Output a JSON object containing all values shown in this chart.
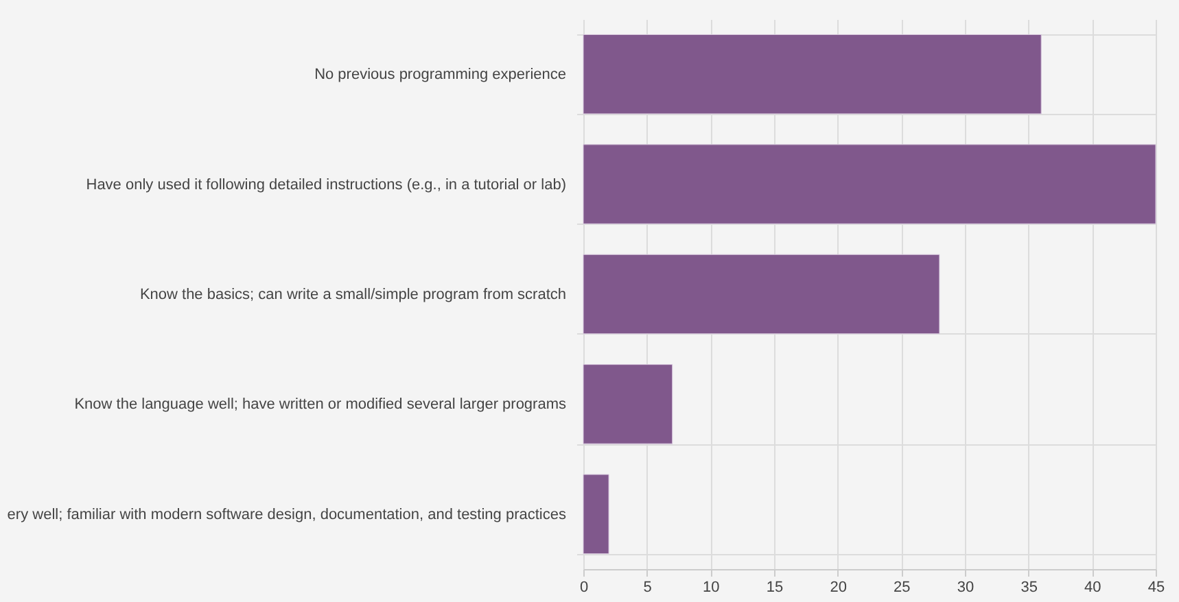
{
  "chart_data": {
    "type": "bar",
    "orientation": "horizontal",
    "categories": [
      "No previous programming experience",
      "Have only used it following detailed instructions (e.g., in a tutorial or lab)",
      "Know the basics; can write a small/simple program from scratch",
      "Know the language well; have written or modified several larger programs",
      "ery well; familiar with modern software design, documentation, and testing practices"
    ],
    "values": [
      36,
      45,
      28,
      7,
      2
    ],
    "color": "#80588c",
    "xlim": [
      0,
      45
    ],
    "xticks": [
      0,
      5,
      10,
      15,
      20,
      25,
      30,
      35,
      40,
      45
    ],
    "grid": true
  }
}
